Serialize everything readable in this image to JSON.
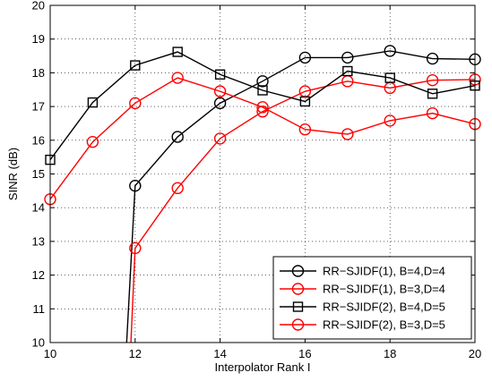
{
  "chart_data": {
    "type": "line",
    "xlabel": "Interpolator Rank I",
    "ylabel": "SINR (dB)",
    "xlim": [
      10,
      20
    ],
    "ylim": [
      10,
      20
    ],
    "xticks": [
      10,
      12,
      14,
      16,
      18,
      20
    ],
    "yticks": [
      10,
      11,
      12,
      13,
      14,
      15,
      16,
      17,
      18,
      19,
      20
    ],
    "grid": true,
    "legend_position": "bottom-right",
    "series": [
      {
        "name": "RR−SJIDF(1), B=4,D=4",
        "color": "#000000",
        "marker": "circle",
        "x": [
          11.8,
          12,
          13,
          14,
          15,
          16,
          17,
          18,
          19,
          20
        ],
        "y": [
          10,
          14.65,
          16.1,
          17.1,
          17.75,
          18.45,
          18.45,
          18.65,
          18.42,
          18.4
        ]
      },
      {
        "name": "RR−SJIDF(1), B=3,D=4",
        "color": "#ff0000",
        "marker": "circle",
        "x": [
          11.9,
          12,
          13,
          14,
          15,
          16,
          17,
          18,
          19,
          20
        ],
        "y": [
          10,
          12.8,
          14.58,
          16.05,
          16.85,
          17.45,
          17.75,
          17.55,
          17.78,
          17.8
        ]
      },
      {
        "name": "RR−SJIDF(2), B=4,D=5",
        "color": "#000000",
        "marker": "square",
        "x": [
          10,
          11,
          12,
          13,
          14,
          15,
          16,
          17,
          18,
          19,
          20
        ],
        "y": [
          15.42,
          17.12,
          18.22,
          18.62,
          17.95,
          17.48,
          17.15,
          18.05,
          17.85,
          17.38,
          17.62
        ]
      },
      {
        "name": "RR−SJIDF(2), B=3,D=5",
        "color": "#ff0000",
        "marker": "circle",
        "x": [
          10,
          11,
          12,
          13,
          14,
          15,
          16,
          17,
          18,
          19,
          20
        ],
        "y": [
          14.25,
          15.95,
          17.1,
          17.85,
          17.45,
          16.98,
          16.32,
          16.18,
          16.58,
          16.8,
          16.48
        ]
      }
    ]
  }
}
